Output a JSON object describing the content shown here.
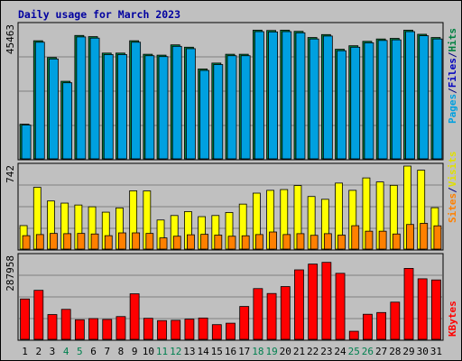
{
  "chart_data": [
    {
      "type": "bar",
      "title": "Daily usage for March 2023",
      "categories": [
        "1",
        "2",
        "3",
        "4",
        "5",
        "6",
        "7",
        "8",
        "9",
        "10",
        "11",
        "12",
        "13",
        "14",
        "15",
        "16",
        "17",
        "18",
        "19",
        "20",
        "21",
        "22",
        "23",
        "24",
        "25",
        "26",
        "27",
        "28",
        "29",
        "30",
        "31"
      ],
      "weekend_categories": [
        "4",
        "5",
        "11",
        "12",
        "18",
        "19",
        "25",
        "26"
      ],
      "max_label": "45463",
      "side_labels": [
        {
          "text": "Pages",
          "color": "#00a0e0"
        },
        {
          "text": "/",
          "color": "#000080"
        },
        {
          "text": "Files",
          "color": "#0000c0"
        },
        {
          "text": "/",
          "color": "#000080"
        },
        {
          "text": "Hits",
          "color": "#008040"
        }
      ],
      "ylim": [
        0,
        45463
      ],
      "series": [
        {
          "name": "Hits",
          "color": "#008040",
          "values": [
            11800,
            40200,
            34500,
            26400,
            42000,
            41600,
            36000,
            36000,
            40200,
            35600,
            35300,
            38800,
            38000,
            30600,
            32600,
            35600,
            35600,
            43800,
            43700,
            43800,
            43400,
            41300,
            42300,
            37300,
            38500,
            40000,
            40800,
            41000,
            43800,
            42400,
            41300
          ]
        },
        {
          "name": "Files",
          "color": "#00a0e0",
          "values": [
            11500,
            39700,
            34000,
            25900,
            41500,
            41100,
            35500,
            35500,
            39700,
            35100,
            34800,
            38300,
            37500,
            30100,
            32100,
            35100,
            35100,
            43300,
            43200,
            43300,
            42900,
            40800,
            41800,
            36800,
            38000,
            39500,
            40300,
            40500,
            43300,
            41900,
            40800
          ]
        }
      ]
    },
    {
      "type": "bar",
      "max_label": "742",
      "side_labels": [
        {
          "text": "Sites",
          "color": "#ff8000"
        },
        {
          "text": "/",
          "color": "#000080"
        },
        {
          "text": "Visits",
          "color": "#e0e000"
        }
      ],
      "ylim": [
        0,
        742
      ],
      "series": [
        {
          "name": "Visits",
          "color": "#ffff00",
          "values": [
            210,
            552,
            430,
            411,
            394,
            378,
            330,
            368,
            521,
            520,
            260,
            300,
            335,
            290,
            300,
            327,
            402,
            500,
            525,
            532,
            568,
            470,
            445,
            590,
            525,
            636,
            600,
            570,
            742,
            705,
            370
          ]
        },
        {
          "name": "Sites",
          "color": "#ff8000",
          "values": [
            120,
            130,
            140,
            138,
            140,
            135,
            120,
            145,
            145,
            140,
            100,
            115,
            128,
            132,
            125,
            115,
            119,
            130,
            153,
            130,
            138,
            123,
            138,
            125,
            209,
            160,
            160,
            135,
            220,
            230,
            208
          ]
        }
      ]
    },
    {
      "type": "bar",
      "max_label": "287958",
      "side_labels": [
        {
          "text": "KBytes",
          "color": "#ff0000"
        }
      ],
      "ylim": [
        0,
        287958
      ],
      "series": [
        {
          "name": "KBytes",
          "color": "#ff0000",
          "values": [
            140000,
            170000,
            86000,
            104000,
            68000,
            72000,
            69000,
            79000,
            158000,
            73000,
            65000,
            66000,
            70000,
            74000,
            51000,
            56000,
            114000,
            176000,
            159000,
            183000,
            241000,
            261000,
            267000,
            229000,
            28000,
            87000,
            93000,
            129000,
            246000,
            210000,
            206000
          ]
        }
      ]
    }
  ]
}
